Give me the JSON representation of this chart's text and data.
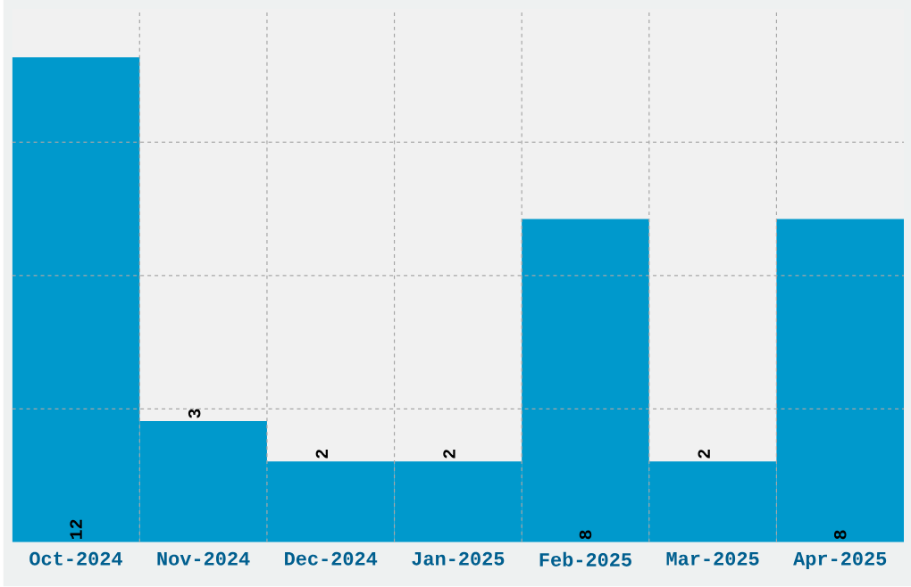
{
  "chart_data": {
    "type": "bar",
    "categories": [
      "Oct-2024",
      "Nov-2024",
      "Dec-2024",
      "Jan-2025",
      "Feb-2025",
      "Mar-2025",
      "Apr-2025"
    ],
    "values": [
      12,
      3,
      2,
      2,
      8,
      2,
      8
    ],
    "color": "#0099cc",
    "ylim": [
      0,
      13.2
    ],
    "yticks": [
      {
        "value": 3.3,
        "label": null
      },
      {
        "value": 6.6,
        "label": null
      },
      {
        "value": 9.9,
        "label": null
      }
    ],
    "tick_labels": "x",
    "grid": true,
    "data_labels": true
  }
}
